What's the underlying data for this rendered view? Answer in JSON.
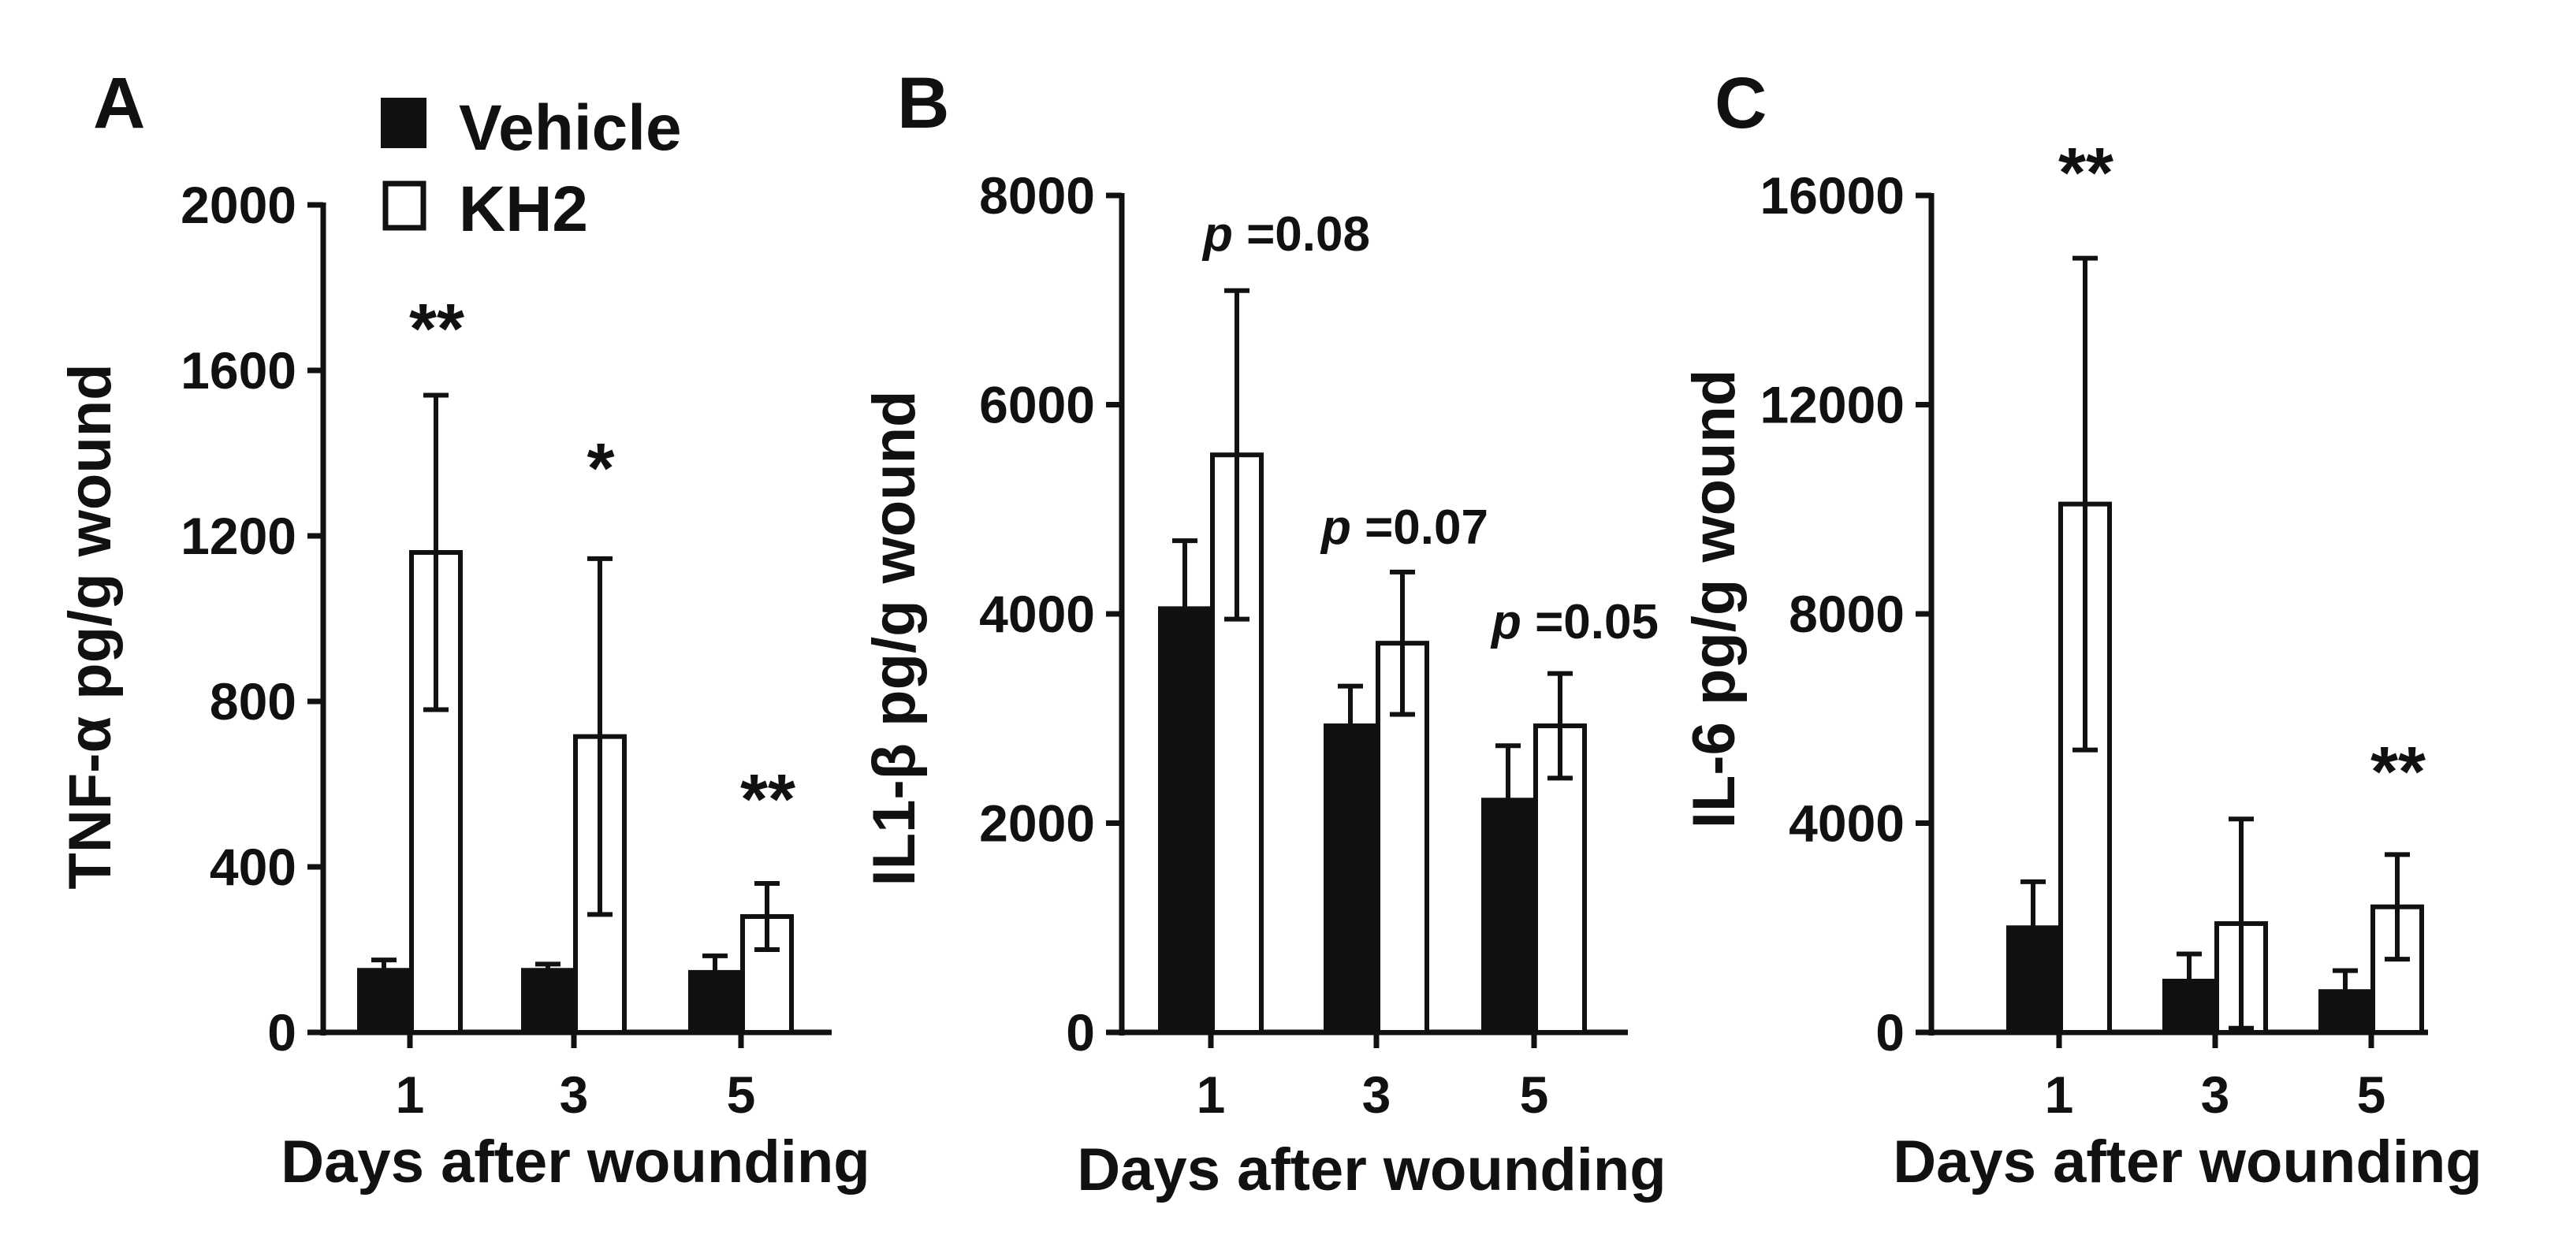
{
  "legend": {
    "items": [
      {
        "label": "Vehicle",
        "fill": "#111111"
      },
      {
        "label": "KH2",
        "fill": "#ffffff"
      }
    ]
  },
  "chart_data": [
    {
      "type": "bar",
      "panel": "A",
      "categories": [
        "1",
        "3",
        "5"
      ],
      "xlabel": "Days after wounding",
      "ylabel": "TNF-α pg/g wound",
      "ylim": [
        0,
        2000
      ],
      "yticks": [
        0,
        400,
        800,
        1200,
        1600,
        2000
      ],
      "series": [
        {
          "name": "Vehicle",
          "values": [
            150,
            150,
            145
          ],
          "errors": [
            25,
            15,
            40
          ]
        },
        {
          "name": "KH2",
          "values": [
            1160,
            715,
            280
          ],
          "errors": [
            380,
            430,
            80
          ]
        }
      ],
      "annotations": [
        "**",
        "*",
        "**"
      ]
    },
    {
      "type": "bar",
      "panel": "B",
      "categories": [
        "1",
        "3",
        "5"
      ],
      "xlabel": "Days after wounding",
      "ylabel": "IL1-β pg/g wound",
      "ylim": [
        0,
        8000
      ],
      "yticks": [
        0,
        2000,
        4000,
        6000,
        8000
      ],
      "series": [
        {
          "name": "Vehicle",
          "values": [
            4050,
            2930,
            2220
          ],
          "errors": [
            650,
            380,
            520
          ]
        },
        {
          "name": "KH2",
          "values": [
            5520,
            3720,
            2930
          ],
          "errors": [
            1570,
            680,
            500
          ]
        }
      ],
      "annotations": [
        "p =0.08",
        "p =0.07",
        "p =0.05"
      ]
    },
    {
      "type": "bar",
      "panel": "C",
      "categories": [
        "1",
        "3",
        "5"
      ],
      "xlabel": "Days after wounding",
      "ylabel": "IL-6 pg/g wound",
      "ylim": [
        0,
        16000
      ],
      "yticks": [
        0,
        4000,
        8000,
        12000,
        16000
      ],
      "series": [
        {
          "name": "Vehicle",
          "values": [
            2000,
            980,
            780
          ],
          "errors": [
            880,
            520,
            400
          ]
        },
        {
          "name": "KH2",
          "values": [
            10100,
            2080,
            2400
          ],
          "errors": [
            4700,
            2000,
            1000
          ]
        }
      ],
      "annotations": [
        "**",
        "",
        "**"
      ]
    }
  ]
}
